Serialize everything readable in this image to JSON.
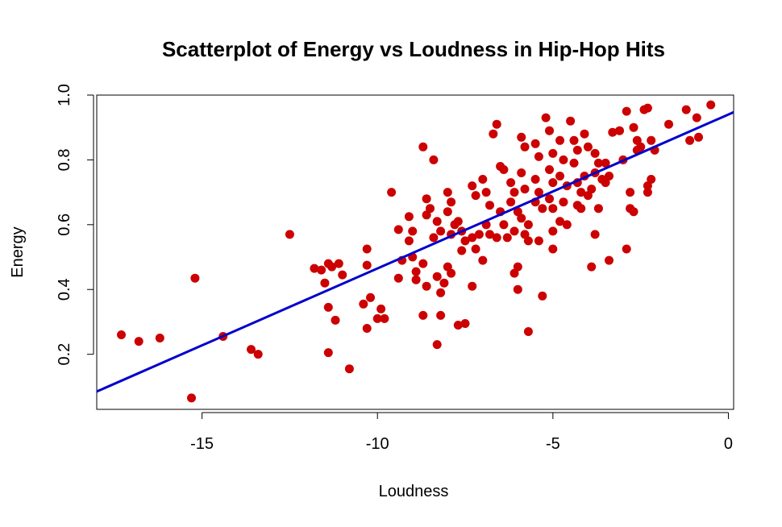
{
  "chart_data": {
    "type": "scatter",
    "title": "Scatterplot of Energy vs Loudness in Hip-Hop Hits",
    "xlabel": "Loudness",
    "ylabel": "Energy",
    "xlim": [
      -18.0,
      0.15
    ],
    "ylim": [
      0.03,
      1.0
    ],
    "x_ticks": [
      -15,
      -10,
      -5,
      0
    ],
    "x_tick_labels": [
      "-15",
      "-10",
      "-5",
      "0"
    ],
    "y_ticks": [
      0.2,
      0.4,
      0.6,
      0.8,
      1.0
    ],
    "y_tick_labels": [
      "0.2",
      "0.4",
      "0.6",
      "0.8",
      "1.0"
    ],
    "grid": false,
    "colors": {
      "points": "#CC0000",
      "regression_line": "#0000CC"
    },
    "regression_line": {
      "intercept": 0.94,
      "slope": 0.0475
    },
    "series": [
      {
        "points": [
          [
            -17.3,
            0.26
          ],
          [
            -16.8,
            0.24
          ],
          [
            -16.2,
            0.25
          ],
          [
            -15.3,
            0.065
          ],
          [
            -15.2,
            0.435
          ],
          [
            -14.4,
            0.255
          ],
          [
            -13.6,
            0.215
          ],
          [
            -13.4,
            0.2
          ],
          [
            -12.5,
            0.57
          ],
          [
            -11.8,
            0.465
          ],
          [
            -11.6,
            0.46
          ],
          [
            -11.5,
            0.42
          ],
          [
            -11.4,
            0.48
          ],
          [
            -11.3,
            0.47
          ],
          [
            -11.1,
            0.48
          ],
          [
            -11.0,
            0.445
          ],
          [
            -11.4,
            0.345
          ],
          [
            -11.2,
            0.305
          ],
          [
            -11.4,
            0.205
          ],
          [
            -10.8,
            0.155
          ],
          [
            -10.3,
            0.525
          ],
          [
            -10.3,
            0.475
          ],
          [
            -10.4,
            0.355
          ],
          [
            -10.2,
            0.375
          ],
          [
            -10.0,
            0.31
          ],
          [
            -10.3,
            0.28
          ],
          [
            -9.9,
            0.34
          ],
          [
            -9.8,
            0.31
          ],
          [
            -9.6,
            0.7
          ],
          [
            -9.4,
            0.585
          ],
          [
            -9.3,
            0.49
          ],
          [
            -9.4,
            0.435
          ],
          [
            -9.1,
            0.625
          ],
          [
            -9.0,
            0.58
          ],
          [
            -9.1,
            0.55
          ],
          [
            -9.0,
            0.5
          ],
          [
            -8.9,
            0.455
          ],
          [
            -8.9,
            0.43
          ],
          [
            -8.7,
            0.84
          ],
          [
            -8.6,
            0.68
          ],
          [
            -8.5,
            0.65
          ],
          [
            -8.6,
            0.63
          ],
          [
            -8.7,
            0.48
          ],
          [
            -8.6,
            0.41
          ],
          [
            -8.7,
            0.32
          ],
          [
            -8.4,
            0.8
          ],
          [
            -8.3,
            0.61
          ],
          [
            -8.2,
            0.58
          ],
          [
            -8.4,
            0.56
          ],
          [
            -8.3,
            0.44
          ],
          [
            -8.2,
            0.39
          ],
          [
            -8.3,
            0.23
          ],
          [
            -8.2,
            0.32
          ],
          [
            -8.0,
            0.7
          ],
          [
            -7.9,
            0.67
          ],
          [
            -8.0,
            0.64
          ],
          [
            -7.8,
            0.6
          ],
          [
            -7.9,
            0.57
          ],
          [
            -8.0,
            0.47
          ],
          [
            -8.1,
            0.42
          ],
          [
            -7.9,
            0.45
          ],
          [
            -7.7,
            0.61
          ],
          [
            -7.6,
            0.58
          ],
          [
            -7.5,
            0.55
          ],
          [
            -7.6,
            0.52
          ],
          [
            -7.7,
            0.29
          ],
          [
            -7.5,
            0.295
          ],
          [
            -7.3,
            0.72
          ],
          [
            -7.2,
            0.69
          ],
          [
            -7.3,
            0.56
          ],
          [
            -7.2,
            0.525
          ],
          [
            -7.3,
            0.41
          ],
          [
            -7.1,
            0.57
          ],
          [
            -7.0,
            0.74
          ],
          [
            -6.9,
            0.7
          ],
          [
            -6.8,
            0.66
          ],
          [
            -6.9,
            0.6
          ],
          [
            -7.0,
            0.49
          ],
          [
            -6.8,
            0.57
          ],
          [
            -6.7,
            0.88
          ],
          [
            -6.6,
            0.91
          ],
          [
            -6.5,
            0.78
          ],
          [
            -6.4,
            0.77
          ],
          [
            -6.5,
            0.64
          ],
          [
            -6.4,
            0.6
          ],
          [
            -6.6,
            0.56
          ],
          [
            -6.3,
            0.56
          ],
          [
            -6.2,
            0.73
          ],
          [
            -6.1,
            0.7
          ],
          [
            -6.2,
            0.67
          ],
          [
            -6.0,
            0.64
          ],
          [
            -6.1,
            0.58
          ],
          [
            -6.0,
            0.47
          ],
          [
            -6.1,
            0.45
          ],
          [
            -6.0,
            0.4
          ],
          [
            -5.9,
            0.87
          ],
          [
            -5.8,
            0.84
          ],
          [
            -5.9,
            0.76
          ],
          [
            -5.8,
            0.71
          ],
          [
            -5.9,
            0.62
          ],
          [
            -5.7,
            0.6
          ],
          [
            -5.8,
            0.57
          ],
          [
            -5.7,
            0.55
          ],
          [
            -5.7,
            0.27
          ],
          [
            -5.5,
            0.85
          ],
          [
            -5.4,
            0.81
          ],
          [
            -5.5,
            0.74
          ],
          [
            -5.4,
            0.7
          ],
          [
            -5.5,
            0.67
          ],
          [
            -5.3,
            0.65
          ],
          [
            -5.4,
            0.55
          ],
          [
            -5.3,
            0.38
          ],
          [
            -5.2,
            0.93
          ],
          [
            -5.1,
            0.89
          ],
          [
            -5.0,
            0.82
          ],
          [
            -5.1,
            0.77
          ],
          [
            -5.0,
            0.73
          ],
          [
            -5.1,
            0.68
          ],
          [
            -5.0,
            0.65
          ],
          [
            -5.0,
            0.58
          ],
          [
            -5.0,
            0.525
          ],
          [
            -4.8,
            0.86
          ],
          [
            -4.7,
            0.8
          ],
          [
            -4.8,
            0.75
          ],
          [
            -4.6,
            0.72
          ],
          [
            -4.7,
            0.67
          ],
          [
            -4.8,
            0.61
          ],
          [
            -4.6,
            0.6
          ],
          [
            -4.5,
            0.92
          ],
          [
            -4.4,
            0.86
          ],
          [
            -4.3,
            0.83
          ],
          [
            -4.4,
            0.79
          ],
          [
            -4.3,
            0.73
          ],
          [
            -4.2,
            0.7
          ],
          [
            -4.3,
            0.66
          ],
          [
            -4.2,
            0.65
          ],
          [
            -4.1,
            0.88
          ],
          [
            -4.0,
            0.84
          ],
          [
            -4.1,
            0.75
          ],
          [
            -3.9,
            0.71
          ],
          [
            -4.0,
            0.69
          ],
          [
            -3.9,
            0.47
          ],
          [
            -3.8,
            0.82
          ],
          [
            -3.7,
            0.79
          ],
          [
            -3.8,
            0.76
          ],
          [
            -3.6,
            0.74
          ],
          [
            -3.7,
            0.65
          ],
          [
            -3.8,
            0.57
          ],
          [
            -3.5,
            0.79
          ],
          [
            -3.4,
            0.75
          ],
          [
            -3.5,
            0.73
          ],
          [
            -3.3,
            0.885
          ],
          [
            -3.4,
            0.49
          ],
          [
            -3.1,
            0.89
          ],
          [
            -3.0,
            0.8
          ],
          [
            -2.9,
            0.95
          ],
          [
            -2.8,
            0.7
          ],
          [
            -2.8,
            0.65
          ],
          [
            -2.9,
            0.525
          ],
          [
            -2.7,
            0.9
          ],
          [
            -2.6,
            0.86
          ],
          [
            -2.5,
            0.84
          ],
          [
            -2.6,
            0.83
          ],
          [
            -2.7,
            0.64
          ],
          [
            -2.4,
            0.955
          ],
          [
            -2.3,
            0.96
          ],
          [
            -2.2,
            0.86
          ],
          [
            -2.1,
            0.83
          ],
          [
            -2.2,
            0.74
          ],
          [
            -2.3,
            0.72
          ],
          [
            -2.3,
            0.7
          ],
          [
            -1.7,
            0.91
          ],
          [
            -1.2,
            0.955
          ],
          [
            -1.1,
            0.86
          ],
          [
            -0.9,
            0.93
          ],
          [
            -0.85,
            0.87
          ],
          [
            -0.5,
            0.97
          ]
        ]
      }
    ]
  }
}
